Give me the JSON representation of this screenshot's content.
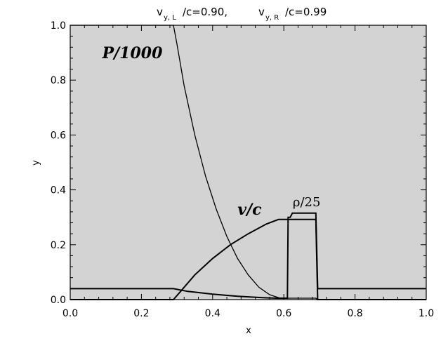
{
  "chart_data": {
    "type": "line",
    "title": {
      "vL_main": "v",
      "vL_sub": "y, L",
      "vL_rest": "/c=0.90,",
      "vR_main": "v",
      "vR_sub": "y, R",
      "vR_rest": "/c=0.99"
    },
    "xlabel": "x",
    "ylabel": "y",
    "xlim": [
      0.0,
      1.0
    ],
    "ylim": [
      0.0,
      1.0
    ],
    "x_ticks": [
      "0.0",
      "0.2",
      "0.4",
      "0.6",
      "0.8",
      "1.0"
    ],
    "y_ticks": [
      "0.0",
      "0.2",
      "0.4",
      "0.6",
      "0.8",
      "1.0"
    ],
    "grid": false,
    "background_color": "#d3d3d3",
    "line_color": "#000000",
    "annotations": [
      {
        "text": "P/1000",
        "style": "bold-italic",
        "x": 0.09,
        "y": 0.88
      },
      {
        "text": "v/c",
        "style": "bold-italic",
        "x": 0.47,
        "y": 0.31
      },
      {
        "text": "ρ/25",
        "style": "normal",
        "x": 0.625,
        "y": 0.34
      }
    ],
    "series": [
      {
        "x": [
          0.0,
          0.29,
          0.3,
          0.32,
          0.35,
          0.38,
          0.41,
          0.44,
          0.47,
          0.5,
          0.53,
          0.56,
          0.59,
          0.6,
          0.61,
          0.612,
          0.618,
          0.69,
          0.695,
          1.0
        ],
        "values": [
          1.0,
          1.0,
          0.93,
          0.78,
          0.6,
          0.45,
          0.33,
          0.23,
          0.15,
          0.09,
          0.045,
          0.018,
          0.005,
          0.005,
          0.005,
          0.005,
          0.005,
          0.005,
          0.0,
          0.0
        ]
      },
      {
        "x": [
          0.0,
          0.29,
          0.31,
          0.35,
          0.4,
          0.45,
          0.5,
          0.55,
          0.585,
          0.612,
          0.618,
          0.69,
          0.695,
          1.0
        ],
        "values": [
          0.0,
          0.0,
          0.03,
          0.09,
          0.15,
          0.2,
          0.24,
          0.275,
          0.292,
          0.292,
          0.292,
          0.292,
          0.0,
          0.0
        ]
      },
      {
        "x": [
          0.0,
          0.29,
          0.33,
          0.4,
          0.47,
          0.54,
          0.58,
          0.61,
          0.612,
          0.618,
          0.624,
          0.69,
          0.695,
          1.0
        ],
        "values": [
          0.04,
          0.04,
          0.03,
          0.02,
          0.012,
          0.007,
          0.005,
          0.005,
          0.3,
          0.3,
          0.315,
          0.315,
          0.04,
          0.04
        ]
      }
    ]
  }
}
